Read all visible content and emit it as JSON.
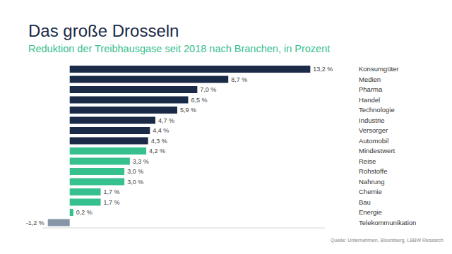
{
  "chart_data": {
    "type": "bar",
    "orientation": "horizontal",
    "title": "Das große Drosseln",
    "subtitle": "Reduktion der Treibhausgase seit 2018 nach Branchen, in Prozent",
    "categories": [
      "Konsumgüter",
      "Medien",
      "Pharma",
      "Handel",
      "Technologie",
      "Industrie",
      "Versorger",
      "Automobil",
      "Mindestwert",
      "Reise",
      "Rohstoffe",
      "Nahrung",
      "Chemie",
      "Bau",
      "Energie",
      "Telekommunikation"
    ],
    "values": [
      13.2,
      8.7,
      7.0,
      6.5,
      5.9,
      4.7,
      4.4,
      4.3,
      4.2,
      3.3,
      3.0,
      3.0,
      1.7,
      1.7,
      0.2,
      -1.2
    ],
    "value_labels": [
      "13,2 %",
      "8,7 %",
      "7,0 %",
      "6,5 %",
      "5,9 %",
      "4,7 %",
      "4,4 %",
      "4,3 %",
      "4,2 %",
      "3,3 %",
      "3,0 %",
      "3,0 %",
      "1,7 %",
      "1,7 %",
      "0,2 %",
      "-1,2 %"
    ],
    "colors": [
      "#1b2a47",
      "#1b2a47",
      "#1b2a47",
      "#1b2a47",
      "#1b2a47",
      "#1b2a47",
      "#1b2a47",
      "#1b2a47",
      "#36c08e",
      "#36c08e",
      "#36c08e",
      "#36c08e",
      "#36c08e",
      "#36c08e",
      "#36c08e",
      "#8795a8"
    ],
    "xlim": [
      -1.5,
      14
    ],
    "xticks": [],
    "tick_labels": "y",
    "data_labels": true,
    "grid": false,
    "source": "Quelle: Unternehmen, Bloomberg, LBBW Research"
  }
}
